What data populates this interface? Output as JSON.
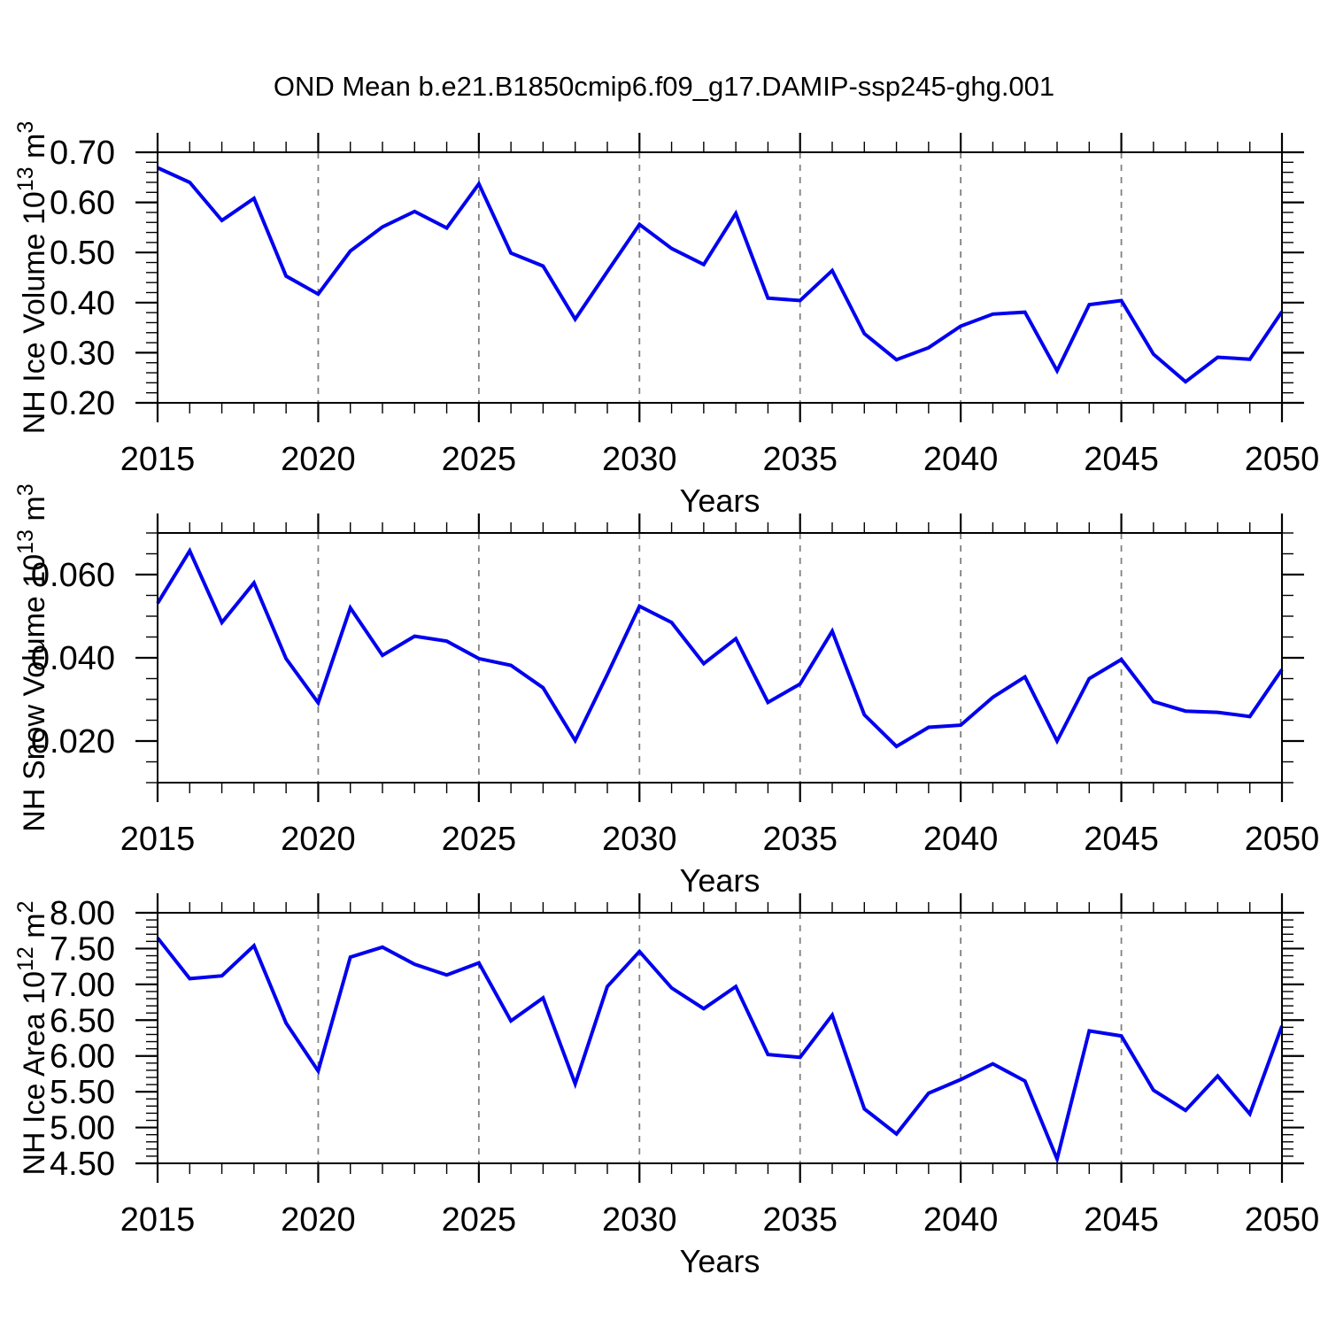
{
  "title": "OND Mean b.e21.B1850cmip6.f09_g17.DAMIP-ssp245-ghg.001",
  "colors": {
    "line": "#0000ee",
    "grid": "#808080",
    "axis": "#000000",
    "background": "#ffffff",
    "text": "#000000"
  },
  "x_axis": {
    "label": "Years",
    "range": [
      2015,
      2050
    ],
    "major_ticks": [
      2015,
      2020,
      2025,
      2030,
      2035,
      2040,
      2045,
      2050
    ],
    "minor_step": 1,
    "grid_years": [
      2020,
      2025,
      2030,
      2035,
      2040,
      2045
    ]
  },
  "chart_data": [
    {
      "id": "nh-ice-volume",
      "type": "line",
      "ylabel": "NH Ice Volume 10^13 m^3",
      "ylabel_parts": [
        {
          "text": "NH Ice Volume 10"
        },
        {
          "text": "13",
          "sup": true
        },
        {
          "text": " m"
        },
        {
          "text": "3",
          "sup": true
        }
      ],
      "ylim": [
        0.2,
        0.7
      ],
      "ymajor_ticks": [
        0.2,
        0.3,
        0.4,
        0.5,
        0.6,
        0.7
      ],
      "yminor_step": 0.02,
      "ylabel_decimals": 2,
      "x_start": 2015,
      "x_step": 1,
      "values": [
        0.669,
        0.64,
        0.564,
        0.608,
        0.453,
        0.417,
        0.503,
        0.551,
        0.582,
        0.549,
        0.637,
        0.499,
        0.473,
        0.367,
        0.462,
        0.556,
        0.508,
        0.476,
        0.578,
        0.409,
        0.404,
        0.464,
        0.338,
        0.286,
        0.31,
        0.353,
        0.377,
        0.381,
        0.264,
        0.396,
        0.404,
        0.297,
        0.242,
        0.291,
        0.287,
        0.382
      ]
    },
    {
      "id": "nh-snow-volume",
      "type": "line",
      "ylabel": "NH Snow Volume 10^13 m^3",
      "ylabel_parts": [
        {
          "text": "NH Snow Volume 10"
        },
        {
          "text": "13",
          "sup": true
        },
        {
          "text": " m"
        },
        {
          "text": "3",
          "sup": true
        }
      ],
      "ylim": [
        0.01,
        0.07
      ],
      "ymajor_ticks": [
        0.02,
        0.04,
        0.06
      ],
      "yminor_step": 0.005,
      "ylabel_decimals": 3,
      "x_start": 2015,
      "x_step": 1,
      "values": [
        0.0531,
        0.0657,
        0.0485,
        0.058,
        0.0398,
        0.0292,
        0.052,
        0.0406,
        0.0452,
        0.044,
        0.0398,
        0.0382,
        0.0328,
        0.0201,
        0.036,
        0.0524,
        0.0485,
        0.0386,
        0.0446,
        0.0293,
        0.0337,
        0.0464,
        0.0263,
        0.0187,
        0.0233,
        0.0238,
        0.0305,
        0.0354,
        0.02,
        0.035,
        0.0396,
        0.0295,
        0.0272,
        0.0269,
        0.0259,
        0.0372
      ]
    },
    {
      "id": "nh-ice-area",
      "type": "line",
      "ylabel": "NH Ice Area 10^12 m^2",
      "ylabel_parts": [
        {
          "text": "NH Ice Area 10"
        },
        {
          "text": "12",
          "sup": true
        },
        {
          "text": " m"
        },
        {
          "text": "2",
          "sup": true
        }
      ],
      "ylim": [
        4.5,
        8.0
      ],
      "ymajor_ticks": [
        4.5,
        5.0,
        5.5,
        6.0,
        6.5,
        7.0,
        7.5,
        8.0
      ],
      "yminor_step": 0.1,
      "ylabel_decimals": 2,
      "x_start": 2015,
      "x_step": 1,
      "values": [
        7.65,
        7.08,
        7.12,
        7.54,
        6.46,
        5.79,
        7.38,
        7.52,
        7.28,
        7.13,
        7.3,
        6.49,
        6.81,
        5.61,
        6.97,
        7.46,
        6.95,
        6.66,
        6.97,
        6.02,
        5.98,
        6.57,
        5.26,
        4.91,
        5.48,
        5.67,
        5.89,
        5.65,
        4.56,
        6.35,
        6.28,
        5.52,
        5.24,
        5.72,
        5.19,
        6.42
      ]
    }
  ]
}
